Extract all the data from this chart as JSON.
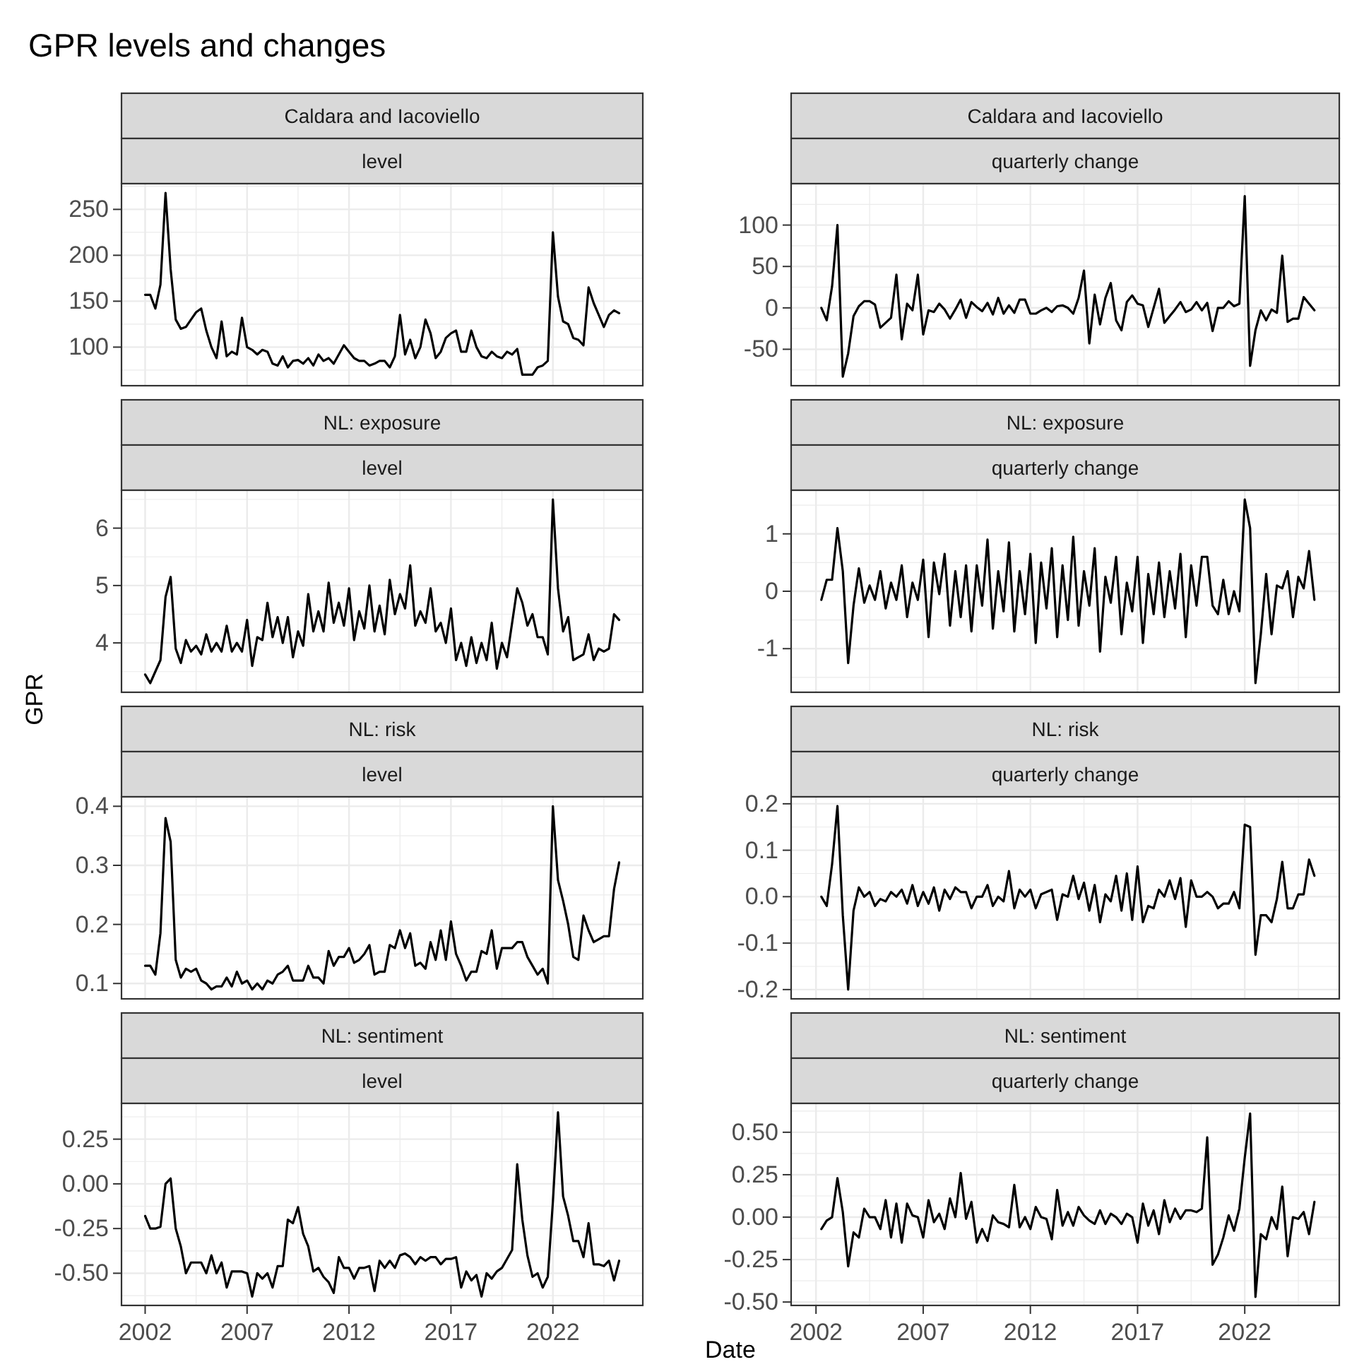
{
  "chart_data": [
    {
      "type": "line",
      "title": "Caldara and Iacoviello",
      "subtitle": "level",
      "annotations": [
        "GPR levels and changes"
      ],
      "color": "#000000",
      "grid": true,
      "tick_labels": "y",
      "xlim": [
        2000.84,
        2026.41
      ],
      "xticks": [
        2002,
        {
          "value": 2004.5,
          "label": null
        },
        2007,
        {
          "value": 2009.5,
          "label": null
        },
        2012,
        {
          "value": 2014.5,
          "label": null
        },
        2017,
        {
          "value": 2019.5,
          "label": null
        },
        2022,
        {
          "value": 2024.5,
          "label": null
        }
      ],
      "ylim": [
        58,
        278
      ],
      "yticks": [
        {
          "value": 75,
          "label": null
        },
        100,
        {
          "value": 125,
          "label": null
        },
        150,
        {
          "value": 175,
          "label": null
        },
        200,
        {
          "value": 225,
          "label": null
        },
        250,
        {
          "value": 275,
          "label": null
        }
      ],
      "x": [
        2002,
        2002.25,
        2002.5,
        2002.75,
        2003,
        2003.25,
        2003.5,
        2003.75,
        2004,
        2004.25,
        2004.5,
        2004.75,
        2005,
        2005.25,
        2005.5,
        2005.75,
        2006,
        2006.25,
        2006.5,
        2006.75,
        2007,
        2007.25,
        2007.5,
        2007.75,
        2008,
        2008.25,
        2008.5,
        2008.75,
        2009,
        2009.25,
        2009.5,
        2009.75,
        2010,
        2010.25,
        2010.5,
        2010.75,
        2011,
        2011.25,
        2011.5,
        2011.75,
        2012,
        2012.25,
        2012.5,
        2012.75,
        2013,
        2013.25,
        2013.5,
        2013.75,
        2014,
        2014.25,
        2014.5,
        2014.75,
        2015,
        2015.25,
        2015.5,
        2015.75,
        2016,
        2016.25,
        2016.5,
        2016.75,
        2017,
        2017.25,
        2017.5,
        2017.75,
        2018,
        2018.25,
        2018.5,
        2018.75,
        2019,
        2019.25,
        2019.5,
        2019.75,
        2020,
        2020.25,
        2020.5,
        2020.75,
        2021,
        2021.25,
        2021.5,
        2021.75,
        2022,
        2022.25,
        2022.5,
        2022.75,
        2023,
        2023.25,
        2023.5,
        2023.75,
        2024,
        2024.25,
        2024.5,
        2024.75,
        2025,
        2025.25
      ],
      "values": [
        157,
        157,
        142,
        168,
        268,
        185,
        130,
        120,
        122,
        130,
        138,
        142,
        118,
        100,
        88,
        128,
        90,
        95,
        92,
        132,
        100,
        97,
        92,
        97,
        95,
        82,
        80,
        90,
        78,
        85,
        86,
        82,
        88,
        80,
        92,
        85,
        88,
        82,
        92,
        102,
        95,
        88,
        85,
        85,
        80,
        82,
        85,
        85,
        78,
        90,
        135,
        92,
        108,
        88,
        100,
        130,
        115,
        88,
        95,
        110,
        115,
        118,
        95,
        95,
        118,
        100,
        90,
        88,
        95,
        90,
        88,
        95,
        92,
        98,
        70,
        70,
        70,
        78,
        80,
        85,
        225,
        155,
        128,
        125,
        110,
        108,
        102,
        165,
        148,
        135,
        122,
        135,
        140,
        137
      ]
    },
    {
      "type": "line",
      "title": "Caldara and Iacoviello",
      "subtitle": "quarterly change",
      "color": "#000000",
      "grid": true,
      "tick_labels": "y",
      "xlim": [
        2000.84,
        2026.41
      ],
      "xticks": [
        2002,
        {
          "value": 2004.5,
          "label": null
        },
        2007,
        {
          "value": 2009.5,
          "label": null
        },
        2012,
        {
          "value": 2014.5,
          "label": null
        },
        2017,
        {
          "value": 2019.5,
          "label": null
        },
        2022,
        {
          "value": 2024.5,
          "label": null
        }
      ],
      "ylim": [
        -94,
        150
      ],
      "yticks": [
        {
          "value": -75,
          "label": null
        },
        -50,
        {
          "value": -25,
          "label": null
        },
        0,
        {
          "value": 25,
          "label": null
        },
        50,
        {
          "value": 75,
          "label": null
        },
        100,
        {
          "value": 125,
          "label": null
        }
      ],
      "x": [
        2002.25,
        2002.5,
        2002.75,
        2003,
        2003.25,
        2003.5,
        2003.75,
        2004,
        2004.25,
        2004.5,
        2004.75,
        2005,
        2005.25,
        2005.5,
        2005.75,
        2006,
        2006.25,
        2006.5,
        2006.75,
        2007,
        2007.25,
        2007.5,
        2007.75,
        2008,
        2008.25,
        2008.5,
        2008.75,
        2009,
        2009.25,
        2009.5,
        2009.75,
        2010,
        2010.25,
        2010.5,
        2010.75,
        2011,
        2011.25,
        2011.5,
        2011.75,
        2012,
        2012.25,
        2012.5,
        2012.75,
        2013,
        2013.25,
        2013.5,
        2013.75,
        2014,
        2014.25,
        2014.5,
        2014.75,
        2015,
        2015.25,
        2015.5,
        2015.75,
        2016,
        2016.25,
        2016.5,
        2016.75,
        2017,
        2017.25,
        2017.5,
        2017.75,
        2018,
        2018.25,
        2018.5,
        2018.75,
        2019,
        2019.25,
        2019.5,
        2019.75,
        2020,
        2020.25,
        2020.5,
        2020.75,
        2021,
        2021.25,
        2021.5,
        2021.75,
        2022,
        2022.25,
        2022.5,
        2022.75,
        2023,
        2023.25,
        2023.5,
        2023.75,
        2024,
        2024.25,
        2024.5,
        2024.75,
        2025,
        2025.25
      ],
      "values": [
        0,
        -15,
        26,
        100,
        -83,
        -55,
        -10,
        2,
        8,
        8,
        4,
        -24,
        -18,
        -12,
        40,
        -38,
        5,
        -3,
        40,
        -32,
        -3,
        -5,
        5,
        -2,
        -13,
        -2,
        10,
        -12,
        7,
        1,
        -4,
        6,
        -8,
        12,
        -7,
        3,
        -6,
        10,
        10,
        -7,
        -7,
        -3,
        0,
        -5,
        2,
        3,
        0,
        -7,
        12,
        45,
        -43,
        16,
        -20,
        12,
        30,
        -15,
        -27,
        7,
        15,
        5,
        3,
        -23,
        0,
        23,
        -18,
        -10,
        -2,
        7,
        -5,
        -2,
        7,
        -3,
        6,
        -28,
        0,
        0,
        8,
        2,
        5,
        135,
        -70,
        -27,
        -3,
        -15,
        -2,
        -6,
        63,
        -17,
        -13,
        -13,
        13,
        5,
        -3
      ]
    },
    {
      "type": "line",
      "title": "NL: exposure",
      "subtitle": "level",
      "ylabel": "GPR",
      "color": "#000000",
      "grid": true,
      "tick_labels": "y",
      "xlim": [
        2000.84,
        2026.41
      ],
      "xticks": [
        2002,
        {
          "value": 2004.5,
          "label": null
        },
        2007,
        {
          "value": 2009.5,
          "label": null
        },
        2012,
        {
          "value": 2014.5,
          "label": null
        },
        2017,
        {
          "value": 2019.5,
          "label": null
        },
        2022,
        {
          "value": 2024.5,
          "label": null
        }
      ],
      "ylim": [
        3.14,
        6.66
      ],
      "yticks": [
        {
          "value": 3.5,
          "label": null
        },
        4,
        {
          "value": 4.5,
          "label": null
        },
        5,
        {
          "value": 5.5,
          "label": null
        },
        6,
        {
          "value": 6.5,
          "label": null
        }
      ],
      "x": [
        2002,
        2002.25,
        2002.5,
        2002.75,
        2003,
        2003.25,
        2003.5,
        2003.75,
        2004,
        2004.25,
        2004.5,
        2004.75,
        2005,
        2005.25,
        2005.5,
        2005.75,
        2006,
        2006.25,
        2006.5,
        2006.75,
        2007,
        2007.25,
        2007.5,
        2007.75,
        2008,
        2008.25,
        2008.5,
        2008.75,
        2009,
        2009.25,
        2009.5,
        2009.75,
        2010,
        2010.25,
        2010.5,
        2010.75,
        2011,
        2011.25,
        2011.5,
        2011.75,
        2012,
        2012.25,
        2012.5,
        2012.75,
        2013,
        2013.25,
        2013.5,
        2013.75,
        2014,
        2014.25,
        2014.5,
        2014.75,
        2015,
        2015.25,
        2015.5,
        2015.75,
        2016,
        2016.25,
        2016.5,
        2016.75,
        2017,
        2017.25,
        2017.5,
        2017.75,
        2018,
        2018.25,
        2018.5,
        2018.75,
        2019,
        2019.25,
        2019.5,
        2019.75,
        2020,
        2020.25,
        2020.5,
        2020.75,
        2021,
        2021.25,
        2021.5,
        2021.75,
        2022,
        2022.25,
        2022.5,
        2022.75,
        2023,
        2023.25,
        2023.5,
        2023.75,
        2024,
        2024.25,
        2024.5,
        2024.75,
        2025,
        2025.25
      ],
      "values": [
        3.45,
        3.3,
        3.5,
        3.7,
        4.8,
        5.15,
        3.9,
        3.65,
        4.05,
        3.85,
        3.95,
        3.8,
        4.15,
        3.85,
        4.0,
        3.85,
        4.3,
        3.85,
        4.0,
        3.85,
        4.4,
        3.6,
        4.1,
        4.05,
        4.7,
        4.1,
        4.45,
        4.0,
        4.45,
        3.75,
        4.2,
        3.95,
        4.85,
        4.2,
        4.55,
        4.2,
        5.05,
        4.35,
        4.7,
        4.3,
        4.95,
        4.05,
        4.55,
        4.25,
        5.0,
        4.2,
        4.65,
        4.15,
        5.1,
        4.5,
        4.85,
        4.6,
        5.35,
        4.3,
        4.55,
        4.35,
        4.95,
        4.2,
        4.35,
        4.0,
        4.6,
        3.7,
        4.0,
        3.6,
        4.1,
        3.65,
        4.0,
        3.7,
        4.35,
        3.55,
        4.0,
        3.75,
        4.35,
        4.95,
        4.7,
        4.3,
        4.5,
        4.1,
        4.1,
        3.8,
        6.5,
        4.95,
        4.2,
        4.45,
        3.7,
        3.75,
        3.8,
        4.15,
        3.7,
        3.9,
        3.85,
        3.9,
        4.5,
        4.4
      ]
    },
    {
      "type": "line",
      "title": "NL: exposure",
      "subtitle": "quarterly change",
      "color": "#000000",
      "grid": true,
      "tick_labels": "y",
      "xlim": [
        2000.84,
        2026.41
      ],
      "xticks": [
        2002,
        {
          "value": 2004.5,
          "label": null
        },
        2007,
        {
          "value": 2009.5,
          "label": null
        },
        2012,
        {
          "value": 2014.5,
          "label": null
        },
        2017,
        {
          "value": 2019.5,
          "label": null
        },
        2022,
        {
          "value": 2024.5,
          "label": null
        }
      ],
      "ylim": [
        -1.76,
        1.76
      ],
      "yticks": [
        {
          "value": -1.5,
          "label": null
        },
        -1,
        {
          "value": -0.5,
          "label": null
        },
        0,
        {
          "value": 0.5,
          "label": null
        },
        1,
        {
          "value": 1.5,
          "label": null
        }
      ],
      "x": [
        2002.25,
        2002.5,
        2002.75,
        2003,
        2003.25,
        2003.5,
        2003.75,
        2004,
        2004.25,
        2004.5,
        2004.75,
        2005,
        2005.25,
        2005.5,
        2005.75,
        2006,
        2006.25,
        2006.5,
        2006.75,
        2007,
        2007.25,
        2007.5,
        2007.75,
        2008,
        2008.25,
        2008.5,
        2008.75,
        2009,
        2009.25,
        2009.5,
        2009.75,
        2010,
        2010.25,
        2010.5,
        2010.75,
        2011,
        2011.25,
        2011.5,
        2011.75,
        2012,
        2012.25,
        2012.5,
        2012.75,
        2013,
        2013.25,
        2013.5,
        2013.75,
        2014,
        2014.25,
        2014.5,
        2014.75,
        2015,
        2015.25,
        2015.5,
        2015.75,
        2016,
        2016.25,
        2016.5,
        2016.75,
        2017,
        2017.25,
        2017.5,
        2017.75,
        2018,
        2018.25,
        2018.5,
        2018.75,
        2019,
        2019.25,
        2019.5,
        2019.75,
        2020,
        2020.25,
        2020.5,
        2020.75,
        2021,
        2021.25,
        2021.5,
        2021.75,
        2022,
        2022.25,
        2022.5,
        2022.75,
        2023,
        2023.25,
        2023.5,
        2023.75,
        2024,
        2024.25,
        2024.5,
        2024.75,
        2025,
        2025.25
      ],
      "values": [
        -0.15,
        0.2,
        0.2,
        1.1,
        0.35,
        -1.25,
        -0.25,
        0.4,
        -0.2,
        0.1,
        -0.15,
        0.35,
        -0.3,
        0.15,
        -0.15,
        0.45,
        -0.45,
        0.15,
        -0.15,
        0.55,
        -0.8,
        0.5,
        -0.05,
        0.65,
        -0.6,
        0.35,
        -0.45,
        0.45,
        -0.7,
        0.45,
        -0.25,
        0.9,
        -0.65,
        0.35,
        -0.35,
        0.85,
        -0.7,
        0.35,
        -0.4,
        0.65,
        -0.9,
        0.5,
        -0.3,
        0.75,
        -0.8,
        0.45,
        -0.5,
        0.95,
        -0.6,
        0.35,
        -0.25,
        0.75,
        -1.05,
        0.25,
        -0.2,
        0.6,
        -0.75,
        0.15,
        -0.35,
        0.6,
        -0.9,
        0.3,
        -0.4,
        0.5,
        -0.45,
        0.35,
        -0.3,
        0.65,
        -0.8,
        0.45,
        -0.25,
        0.6,
        0.6,
        -0.25,
        -0.4,
        0.2,
        -0.4,
        0,
        -0.35,
        1.6,
        1.1,
        -1.6,
        -0.75,
        0.3,
        -0.75,
        0.1,
        0.05,
        0.35,
        -0.45,
        0.25,
        0.05,
        0.7,
        -0.15
      ]
    },
    {
      "type": "line",
      "title": "NL: risk",
      "subtitle": "level",
      "color": "#000000",
      "grid": true,
      "tick_labels": "y",
      "xlim": [
        2000.84,
        2026.41
      ],
      "xticks": [
        2002,
        {
          "value": 2004.5,
          "label": null
        },
        2007,
        {
          "value": 2009.5,
          "label": null
        },
        2012,
        {
          "value": 2014.5,
          "label": null
        },
        2017,
        {
          "value": 2019.5,
          "label": null
        },
        2022,
        {
          "value": 2024.5,
          "label": null
        }
      ],
      "ylim": [
        0.074,
        0.416
      ],
      "yticks": [
        0.1,
        {
          "value": 0.15,
          "label": null
        },
        0.2,
        {
          "value": 0.25,
          "label": null
        },
        0.3,
        {
          "value": 0.35,
          "label": null
        },
        0.4
      ],
      "x": [
        2002,
        2002.25,
        2002.5,
        2002.75,
        2003,
        2003.25,
        2003.5,
        2003.75,
        2004,
        2004.25,
        2004.5,
        2004.75,
        2005,
        2005.25,
        2005.5,
        2005.75,
        2006,
        2006.25,
        2006.5,
        2006.75,
        2007,
        2007.25,
        2007.5,
        2007.75,
        2008,
        2008.25,
        2008.5,
        2008.75,
        2009,
        2009.25,
        2009.5,
        2009.75,
        2010,
        2010.25,
        2010.5,
        2010.75,
        2011,
        2011.25,
        2011.5,
        2011.75,
        2012,
        2012.25,
        2012.5,
        2012.75,
        2013,
        2013.25,
        2013.5,
        2013.75,
        2014,
        2014.25,
        2014.5,
        2014.75,
        2015,
        2015.25,
        2015.5,
        2015.75,
        2016,
        2016.25,
        2016.5,
        2016.75,
        2017,
        2017.25,
        2017.5,
        2017.75,
        2018,
        2018.25,
        2018.5,
        2018.75,
        2019,
        2019.25,
        2019.5,
        2019.75,
        2020,
        2020.25,
        2020.5,
        2020.75,
        2021,
        2021.25,
        2021.5,
        2021.75,
        2022,
        2022.25,
        2022.5,
        2022.75,
        2023,
        2023.25,
        2023.5,
        2023.75,
        2024,
        2024.25,
        2024.5,
        2024.75,
        2025,
        2025.25
      ],
      "values": [
        0.13,
        0.13,
        0.115,
        0.185,
        0.38,
        0.34,
        0.14,
        0.11,
        0.125,
        0.12,
        0.125,
        0.105,
        0.1,
        0.09,
        0.095,
        0.095,
        0.11,
        0.095,
        0.12,
        0.1,
        0.105,
        0.09,
        0.1,
        0.09,
        0.105,
        0.1,
        0.115,
        0.12,
        0.13,
        0.105,
        0.105,
        0.105,
        0.13,
        0.11,
        0.11,
        0.1,
        0.155,
        0.13,
        0.145,
        0.145,
        0.16,
        0.135,
        0.14,
        0.15,
        0.165,
        0.115,
        0.12,
        0.12,
        0.165,
        0.16,
        0.19,
        0.16,
        0.185,
        0.13,
        0.135,
        0.125,
        0.17,
        0.14,
        0.19,
        0.14,
        0.205,
        0.15,
        0.13,
        0.105,
        0.12,
        0.12,
        0.155,
        0.15,
        0.19,
        0.125,
        0.16,
        0.16,
        0.16,
        0.17,
        0.17,
        0.145,
        0.13,
        0.115,
        0.125,
        0.1,
        0.4,
        0.275,
        0.24,
        0.2,
        0.145,
        0.14,
        0.215,
        0.19,
        0.17,
        0.175,
        0.18,
        0.18,
        0.26,
        0.305
      ]
    },
    {
      "type": "line",
      "title": "NL: risk",
      "subtitle": "quarterly change",
      "color": "#000000",
      "grid": true,
      "tick_labels": "y",
      "xlim": [
        2000.84,
        2026.41
      ],
      "xticks": [
        2002,
        {
          "value": 2004.5,
          "label": null
        },
        2007,
        {
          "value": 2009.5,
          "label": null
        },
        2012,
        {
          "value": 2014.5,
          "label": null
        },
        2017,
        {
          "value": 2019.5,
          "label": null
        },
        2022,
        {
          "value": 2024.5,
          "label": null
        }
      ],
      "ylim": [
        -0.22,
        0.215
      ],
      "yticks": [
        {
          "value": -0.2,
          "label": "-0.2"
        },
        {
          "value": -0.15,
          "label": null
        },
        {
          "value": -0.1,
          "label": "-0.1"
        },
        {
          "value": -0.05,
          "label": null
        },
        {
          "value": 0,
          "label": "0.0"
        },
        {
          "value": 0.05,
          "label": null
        },
        {
          "value": 0.1,
          "label": "0.1"
        },
        {
          "value": 0.15,
          "label": null
        },
        {
          "value": 0.2,
          "label": "0.2"
        }
      ],
      "x": [
        2002.25,
        2002.5,
        2002.75,
        2003,
        2003.25,
        2003.5,
        2003.75,
        2004,
        2004.25,
        2004.5,
        2004.75,
        2005,
        2005.25,
        2005.5,
        2005.75,
        2006,
        2006.25,
        2006.5,
        2006.75,
        2007,
        2007.25,
        2007.5,
        2007.75,
        2008,
        2008.25,
        2008.5,
        2008.75,
        2009,
        2009.25,
        2009.5,
        2009.75,
        2010,
        2010.25,
        2010.5,
        2010.75,
        2011,
        2011.25,
        2011.5,
        2011.75,
        2012,
        2012.25,
        2012.5,
        2012.75,
        2013,
        2013.25,
        2013.5,
        2013.75,
        2014,
        2014.25,
        2014.5,
        2014.75,
        2015,
        2015.25,
        2015.5,
        2015.75,
        2016,
        2016.25,
        2016.5,
        2016.75,
        2017,
        2017.25,
        2017.5,
        2017.75,
        2018,
        2018.25,
        2018.5,
        2018.75,
        2019,
        2019.25,
        2019.5,
        2019.75,
        2020,
        2020.25,
        2020.5,
        2020.75,
        2021,
        2021.25,
        2021.5,
        2021.75,
        2022,
        2022.25,
        2022.5,
        2022.75,
        2023,
        2023.25,
        2023.5,
        2023.75,
        2024,
        2024.25,
        2024.5,
        2024.75,
        2025,
        2025.25
      ],
      "values": [
        0,
        -0.02,
        0.07,
        0.195,
        -0.04,
        -0.2,
        -0.03,
        0.02,
        0,
        0.01,
        -0.02,
        -0.005,
        -0.01,
        0.01,
        0,
        0.015,
        -0.015,
        0.025,
        -0.02,
        0.01,
        -0.015,
        0.02,
        -0.03,
        0.015,
        -0.005,
        0.02,
        0.01,
        0.01,
        -0.025,
        0,
        0,
        0.025,
        -0.02,
        0,
        -0.01,
        0.055,
        -0.025,
        0.015,
        0,
        0.015,
        -0.025,
        0.005,
        0.01,
        0.015,
        -0.05,
        0.005,
        0,
        0.045,
        -0.005,
        0.03,
        -0.03,
        0.025,
        -0.055,
        0.005,
        -0.01,
        0.045,
        -0.03,
        0.05,
        -0.05,
        0.065,
        -0.055,
        -0.02,
        -0.025,
        0.015,
        0,
        0.035,
        -0.005,
        0.04,
        -0.065,
        0.035,
        0,
        0,
        0.01,
        0,
        -0.025,
        -0.015,
        -0.015,
        0.01,
        -0.025,
        0.155,
        0.15,
        -0.125,
        -0.04,
        -0.04,
        -0.055,
        -0.005,
        0.075,
        -0.025,
        -0.025,
        0.005,
        0.005,
        0.08,
        0.045
      ]
    },
    {
      "type": "line",
      "title": "NL: sentiment",
      "subtitle": "level",
      "color": "#000000",
      "grid": true,
      "xlim": [
        2000.84,
        2026.41
      ],
      "xticks": [
        2002,
        {
          "value": 2004.5,
          "label": null
        },
        2007,
        {
          "value": 2009.5,
          "label": null
        },
        2012,
        {
          "value": 2014.5,
          "label": null
        },
        2017,
        {
          "value": 2019.5,
          "label": null
        },
        2022,
        {
          "value": 2024.5,
          "label": null
        }
      ],
      "ylim": [
        -0.68,
        0.45
      ],
      "yticks": [
        {
          "value": -0.625,
          "label": null
        },
        {
          "value": -0.5,
          "label": "-0.50"
        },
        {
          "value": -0.375,
          "label": null
        },
        {
          "value": -0.25,
          "label": "-0.25"
        },
        {
          "value": -0.125,
          "label": null
        },
        {
          "value": 0,
          "label": "0.00"
        },
        {
          "value": 0.125,
          "label": null
        },
        {
          "value": 0.25,
          "label": "0.25"
        },
        {
          "value": 0.375,
          "label": null
        }
      ],
      "x": [
        2002,
        2002.25,
        2002.5,
        2002.75,
        2003,
        2003.25,
        2003.5,
        2003.75,
        2004,
        2004.25,
        2004.5,
        2004.75,
        2005,
        2005.25,
        2005.5,
        2005.75,
        2006,
        2006.25,
        2006.5,
        2006.75,
        2007,
        2007.25,
        2007.5,
        2007.75,
        2008,
        2008.25,
        2008.5,
        2008.75,
        2009,
        2009.25,
        2009.5,
        2009.75,
        2010,
        2010.25,
        2010.5,
        2010.75,
        2011,
        2011.25,
        2011.5,
        2011.75,
        2012,
        2012.25,
        2012.5,
        2012.75,
        2013,
        2013.25,
        2013.5,
        2013.75,
        2014,
        2014.25,
        2014.5,
        2014.75,
        2015,
        2015.25,
        2015.5,
        2015.75,
        2016,
        2016.25,
        2016.5,
        2016.75,
        2017,
        2017.25,
        2017.5,
        2017.75,
        2018,
        2018.25,
        2018.5,
        2018.75,
        2019,
        2019.25,
        2019.5,
        2019.75,
        2020,
        2020.25,
        2020.5,
        2020.75,
        2021,
        2021.25,
        2021.5,
        2021.75,
        2022,
        2022.25,
        2022.5,
        2022.75,
        2023,
        2023.25,
        2023.5,
        2023.75,
        2024,
        2024.25,
        2024.5,
        2024.75,
        2025,
        2025.25
      ],
      "values": [
        -0.18,
        -0.25,
        -0.25,
        -0.24,
        0,
        0.03,
        -0.25,
        -0.35,
        -0.5,
        -0.44,
        -0.44,
        -0.44,
        -0.5,
        -0.4,
        -0.5,
        -0.44,
        -0.58,
        -0.49,
        -0.49,
        -0.49,
        -0.5,
        -0.63,
        -0.5,
        -0.53,
        -0.5,
        -0.58,
        -0.46,
        -0.46,
        -0.2,
        -0.22,
        -0.13,
        -0.28,
        -0.35,
        -0.49,
        -0.47,
        -0.52,
        -0.55,
        -0.61,
        -0.41,
        -0.47,
        -0.47,
        -0.53,
        -0.47,
        -0.47,
        -0.46,
        -0.6,
        -0.43,
        -0.47,
        -0.43,
        -0.47,
        -0.4,
        -0.39,
        -0.41,
        -0.45,
        -0.41,
        -0.43,
        -0.41,
        -0.41,
        -0.45,
        -0.42,
        -0.42,
        -0.41,
        -0.58,
        -0.49,
        -0.54,
        -0.51,
        -0.63,
        -0.5,
        -0.53,
        -0.49,
        -0.47,
        -0.42,
        -0.37,
        0.11,
        -0.2,
        -0.4,
        -0.52,
        -0.5,
        -0.58,
        -0.52,
        -0.1,
        0.4,
        -0.07,
        -0.18,
        -0.32,
        -0.32,
        -0.41,
        -0.22,
        -0.45,
        -0.45,
        -0.46,
        -0.43,
        -0.54,
        -0.43
      ]
    },
    {
      "type": "line",
      "title": "NL: sentiment",
      "subtitle": "quarterly change",
      "xlabel": "Date",
      "color": "#000000",
      "grid": true,
      "xlim": [
        2000.84,
        2026.41
      ],
      "xticks": [
        2002,
        {
          "value": 2004.5,
          "label": null
        },
        2007,
        {
          "value": 2009.5,
          "label": null
        },
        2012,
        {
          "value": 2014.5,
          "label": null
        },
        2017,
        {
          "value": 2019.5,
          "label": null
        },
        2022,
        {
          "value": 2024.5,
          "label": null
        }
      ],
      "ylim": [
        -0.52,
        0.67
      ],
      "yticks": [
        {
          "value": -0.5,
          "label": "-0.50"
        },
        {
          "value": -0.375,
          "label": null
        },
        {
          "value": -0.25,
          "label": "-0.25"
        },
        {
          "value": -0.125,
          "label": null
        },
        {
          "value": 0,
          "label": "0.00"
        },
        {
          "value": 0.125,
          "label": null
        },
        {
          "value": 0.25,
          "label": "0.25"
        },
        {
          "value": 0.375,
          "label": null
        },
        {
          "value": 0.5,
          "label": "0.50"
        },
        {
          "value": 0.625,
          "label": null
        }
      ],
      "x": [
        2002.25,
        2002.5,
        2002.75,
        2003,
        2003.25,
        2003.5,
        2003.75,
        2004,
        2004.25,
        2004.5,
        2004.75,
        2005,
        2005.25,
        2005.5,
        2005.75,
        2006,
        2006.25,
        2006.5,
        2006.75,
        2007,
        2007.25,
        2007.5,
        2007.75,
        2008,
        2008.25,
        2008.5,
        2008.75,
        2009,
        2009.25,
        2009.5,
        2009.75,
        2010,
        2010.25,
        2010.5,
        2010.75,
        2011,
        2011.25,
        2011.5,
        2011.75,
        2012,
        2012.25,
        2012.5,
        2012.75,
        2013,
        2013.25,
        2013.5,
        2013.75,
        2014,
        2014.25,
        2014.5,
        2014.75,
        2015,
        2015.25,
        2015.5,
        2015.75,
        2016,
        2016.25,
        2016.5,
        2016.75,
        2017,
        2017.25,
        2017.5,
        2017.75,
        2018,
        2018.25,
        2018.5,
        2018.75,
        2019,
        2019.25,
        2019.5,
        2019.75,
        2020,
        2020.25,
        2020.5,
        2020.75,
        2021,
        2021.25,
        2021.5,
        2021.75,
        2022,
        2022.25,
        2022.5,
        2022.75,
        2023,
        2023.25,
        2023.5,
        2023.75,
        2024,
        2024.25,
        2024.5,
        2024.75,
        2025,
        2025.25
      ],
      "values": [
        -0.07,
        -0.02,
        0,
        0.23,
        0.03,
        -0.29,
        -0.09,
        -0.12,
        0.05,
        0,
        0,
        -0.07,
        0.1,
        -0.12,
        0.08,
        -0.15,
        0.08,
        0.01,
        0,
        -0.12,
        0.1,
        -0.03,
        0.02,
        -0.07,
        0.11,
        0,
        0.26,
        -0.01,
        0.09,
        -0.15,
        -0.07,
        -0.14,
        0.01,
        -0.03,
        -0.04,
        -0.06,
        0.19,
        -0.06,
        0,
        -0.07,
        0.06,
        0,
        -0.01,
        -0.13,
        0.16,
        -0.05,
        0.03,
        -0.05,
        0.06,
        0.01,
        -0.02,
        -0.04,
        0.04,
        -0.04,
        0.02,
        0,
        -0.04,
        0.02,
        0,
        -0.15,
        0.08,
        -0.05,
        0.04,
        -0.1,
        0.1,
        -0.03,
        0.05,
        -0.01,
        0.04,
        0.04,
        0.03,
        0.05,
        0.47,
        -0.28,
        -0.22,
        -0.12,
        0.01,
        -0.08,
        0.05,
        0.35,
        0.61,
        -0.47,
        -0.1,
        -0.13,
        0,
        -0.07,
        0.18,
        -0.23,
        0,
        -0.01,
        0.03,
        -0.1,
        0.09
      ]
    }
  ]
}
